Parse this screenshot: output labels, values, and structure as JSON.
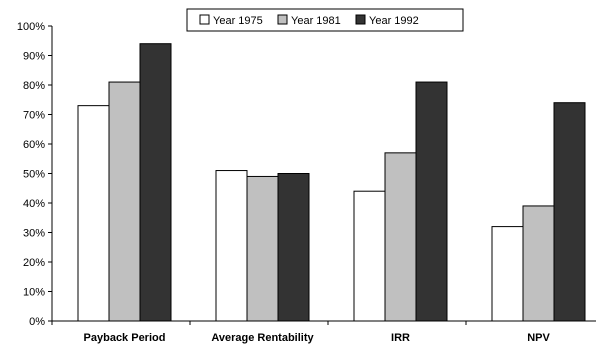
{
  "chart_data": {
    "type": "bar",
    "title": "",
    "xlabel": "",
    "ylabel": "",
    "categories": [
      "Payback Period",
      "Average Rentability",
      "IRR",
      "NPV"
    ],
    "series": [
      {
        "name": "Year 1975",
        "values": [
          73,
          51,
          44,
          32
        ],
        "color": "#ffffff"
      },
      {
        "name": "Year 1981",
        "values": [
          81,
          49,
          57,
          39
        ],
        "color": "#c0c0c0"
      },
      {
        "name": "Year 1992",
        "values": [
          94,
          50,
          81,
          74
        ],
        "color": "#333333"
      }
    ],
    "ylim": [
      0,
      100
    ],
    "y_ticks": [
      0,
      10,
      20,
      30,
      40,
      50,
      60,
      70,
      80,
      90,
      100
    ],
    "y_tick_labels": [
      "0%",
      "10%",
      "20%",
      "30%",
      "40%",
      "50%",
      "60%",
      "70%",
      "80%",
      "90%",
      "100%"
    ],
    "grid": false,
    "legend_position": "top-center"
  }
}
